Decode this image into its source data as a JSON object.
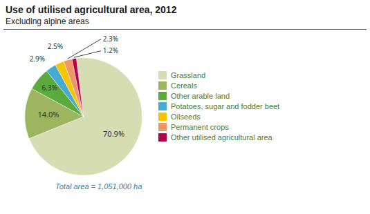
{
  "chart_data": {
    "type": "pie",
    "title": "Use of utilised agricultural area, 2012",
    "subtitle": "Excluding alpine areas",
    "caption": "Total area = 1,051,000 ha",
    "categories": [
      "Grassland",
      "Cereals",
      "Other arable land",
      "Potatoes, sugar and fodder beet",
      "Oilseeds",
      "Permanent crops",
      "Other utilised agricultural area"
    ],
    "values": [
      70.9,
      14.0,
      6.3,
      2.9,
      2.5,
      2.3,
      1.2
    ],
    "value_labels": [
      "70.9%",
      "14.0%",
      "6.3%",
      "2.9%",
      "2.5%",
      "2.3%",
      "1.2%"
    ],
    "colors": [
      "#d6ddb3",
      "#9db55e",
      "#5aaa3c",
      "#45aad4",
      "#f5c500",
      "#f0946a",
      "#b5004e"
    ],
    "data_labels": true,
    "legend": "right"
  }
}
